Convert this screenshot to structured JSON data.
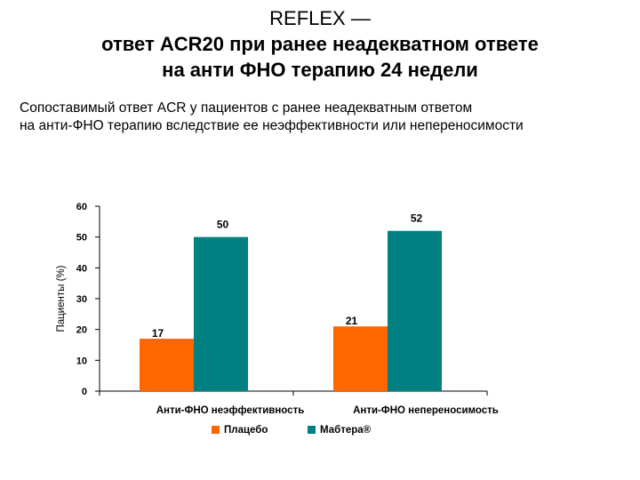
{
  "title": {
    "line1": "REFLEX —",
    "line2": "ответ ACR20 при ранее неадекватном ответе",
    "line3": "на анти ФНО терапию 24 недели"
  },
  "subtitle": {
    "line1": "Сопоставимый ответ ACR у пациентов с ранее неадекватным ответом",
    "line2": "на анти-ФНО терапию вследствие ее неэффективности или непереносимости"
  },
  "chart_data": {
    "type": "bar",
    "categories": [
      "Анти-ФНО неэффективность",
      "Анти-ФНО непереносимость"
    ],
    "series": [
      {
        "name": "Плацебо",
        "color": "#ff6600",
        "values": [
          17,
          21
        ]
      },
      {
        "name": "Мабтера®",
        "color": "#008080",
        "values": [
          50,
          52
        ]
      }
    ],
    "ylabel": "Пациенты (%)",
    "ylim": [
      0,
      60
    ],
    "yticks": [
      0,
      10,
      20,
      30,
      40,
      50,
      60
    ],
    "grid": false,
    "legend": "bottom-center"
  }
}
